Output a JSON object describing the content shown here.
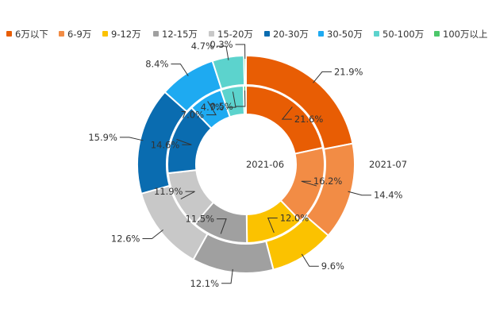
{
  "chart_data": {
    "type": "pie",
    "variant": "nested-donut",
    "legend_position": "top",
    "categories": [
      "6万以下",
      "6-9万",
      "9-12万",
      "12-15万",
      "15-20万",
      "20-30万",
      "30-50万",
      "50-100万",
      "100万以上"
    ],
    "colors": [
      "#e85d04",
      "#f28c45",
      "#fbc200",
      "#a0a0a0",
      "#c8c8c8",
      "#0a6cb0",
      "#1eaaf1",
      "#5cd3cd",
      "#4cc76a"
    ],
    "series": [
      {
        "name": "2021-06",
        "ring": "inner",
        "values": [
          21.6,
          16.2,
          12.0,
          11.5,
          11.9,
          14.6,
          7.0,
          4.7,
          0.5
        ]
      },
      {
        "name": "2021-07",
        "ring": "outer",
        "values": [
          21.9,
          14.4,
          9.6,
          12.1,
          12.6,
          15.9,
          8.4,
          4.7,
          0.3
        ]
      }
    ],
    "value_suffix": "%"
  }
}
